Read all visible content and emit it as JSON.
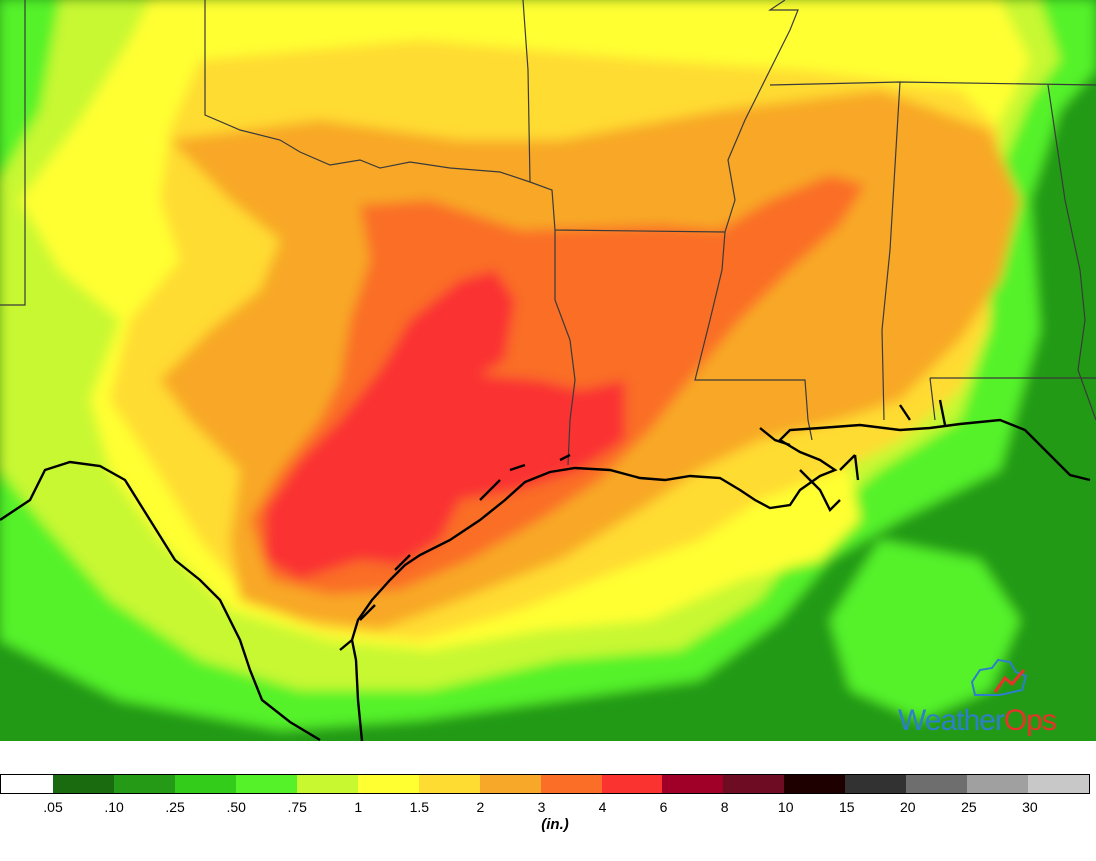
{
  "legend": {
    "colors": [
      "#ffffff",
      "#1a6b10",
      "#249a17",
      "#34cc1a",
      "#55f22a",
      "#c8f830",
      "#ffff32",
      "#ffdc32",
      "#f8a828",
      "#fa6e28",
      "#fa3230",
      "#a00028",
      "#6e0c24",
      "#1e0000",
      "#323232",
      "#6e6e6e",
      "#a0a0a0",
      "#c8c8c8"
    ],
    "labels": [
      ".05",
      ".10",
      ".25",
      ".50",
      ".75",
      "1",
      "1.5",
      "2",
      "3",
      "4",
      "6",
      "8",
      "10",
      "15",
      "20",
      "25",
      "30"
    ],
    "units": "(in.)"
  },
  "map": {
    "shading": {
      "lt_25": "#249a17",
      "25_50": "#34cc1a",
      "50_75": "#55f22a",
      "75_1": "#c8f830",
      "1_1_5": "#ffff32",
      "1_5_2": "#ffdc32",
      "2_3": "#f8a828",
      "3_4": "#fa6e28",
      "4_6": "#fa3230"
    },
    "boundary_color": "#3a3a3a",
    "coastline_color": "#000000"
  },
  "logo": {
    "text_part1": "Weather",
    "text_part2": "Ops",
    "color_part1": "#2e7fc9",
    "color_part2": "#e8322a"
  }
}
